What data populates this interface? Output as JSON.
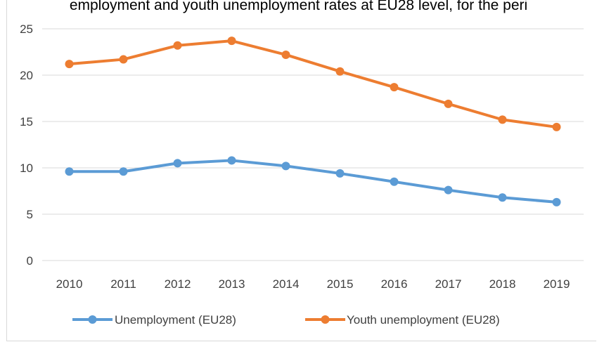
{
  "chart_data": {
    "type": "line",
    "title": "employment and youth unemployment rates at EU28 level, for the peri",
    "x": [
      "2010",
      "2011",
      "2012",
      "2013",
      "2014",
      "2015",
      "2016",
      "2017",
      "2018",
      "2019"
    ],
    "ylim": [
      0,
      25
    ],
    "yticks": [
      0,
      5,
      10,
      15,
      20,
      25
    ],
    "grid": true,
    "legend_position": "bottom",
    "series": [
      {
        "name": "Unemployment (EU28)",
        "color": "#5b9bd5",
        "values": [
          9.6,
          9.6,
          10.5,
          10.8,
          10.2,
          9.4,
          8.5,
          7.6,
          6.8,
          6.3
        ]
      },
      {
        "name": "Youth unemployment (EU28)",
        "color": "#ed7d31",
        "values": [
          21.2,
          21.7,
          23.2,
          23.7,
          22.2,
          20.4,
          18.7,
          16.9,
          15.2,
          14.4
        ]
      }
    ]
  }
}
